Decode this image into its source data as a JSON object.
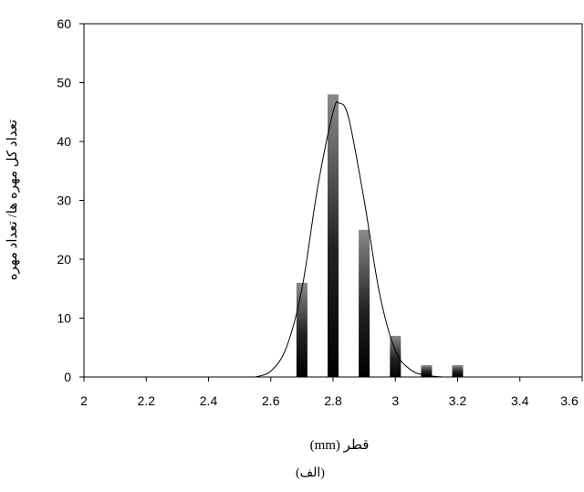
{
  "chart_data": {
    "type": "bar",
    "xlabel": "قطر (mm)",
    "ylabel": "تعداد کل مهره ها/ تعداد مهره",
    "caption": "(الف)",
    "xlim": [
      2,
      3.6
    ],
    "ylim": [
      0,
      60
    ],
    "xticks": [
      2,
      2.2,
      2.4,
      2.6,
      2.8,
      3,
      3.2,
      3.4,
      3.6
    ],
    "xtick_labels": [
      "2",
      "2.2",
      "2.4",
      "2.6",
      "2.8",
      "3",
      "3.2",
      "3.4",
      "3.6"
    ],
    "yticks": [
      0,
      10,
      20,
      30,
      40,
      50,
      60
    ],
    "ytick_labels": [
      "0",
      "10",
      "20",
      "30",
      "40",
      "50",
      "60"
    ],
    "grid": false,
    "series": [
      {
        "kind": "bar",
        "x": [
          2,
          2.1,
          2.2,
          2.3,
          2.4,
          2.5,
          2.6,
          2.7,
          2.8,
          2.9,
          3.0,
          3.1,
          3.2,
          3.3,
          3.4,
          3.5,
          3.6
        ],
        "values": [
          0,
          0,
          0,
          0,
          0,
          0,
          0,
          16,
          48,
          25,
          7,
          2,
          2,
          0,
          0,
          0,
          0
        ]
      },
      {
        "kind": "line",
        "curve": "normal-fit",
        "x": [
          2.55,
          2.6,
          2.65,
          2.7,
          2.75,
          2.8,
          2.82,
          2.85,
          2.9,
          2.95,
          3.0,
          3.05,
          3.1,
          3.15
        ],
        "values": [
          0,
          1,
          5,
          15,
          32,
          45,
          46.5,
          44,
          30,
          14,
          4.5,
          1.2,
          0.3,
          0
        ]
      }
    ]
  }
}
